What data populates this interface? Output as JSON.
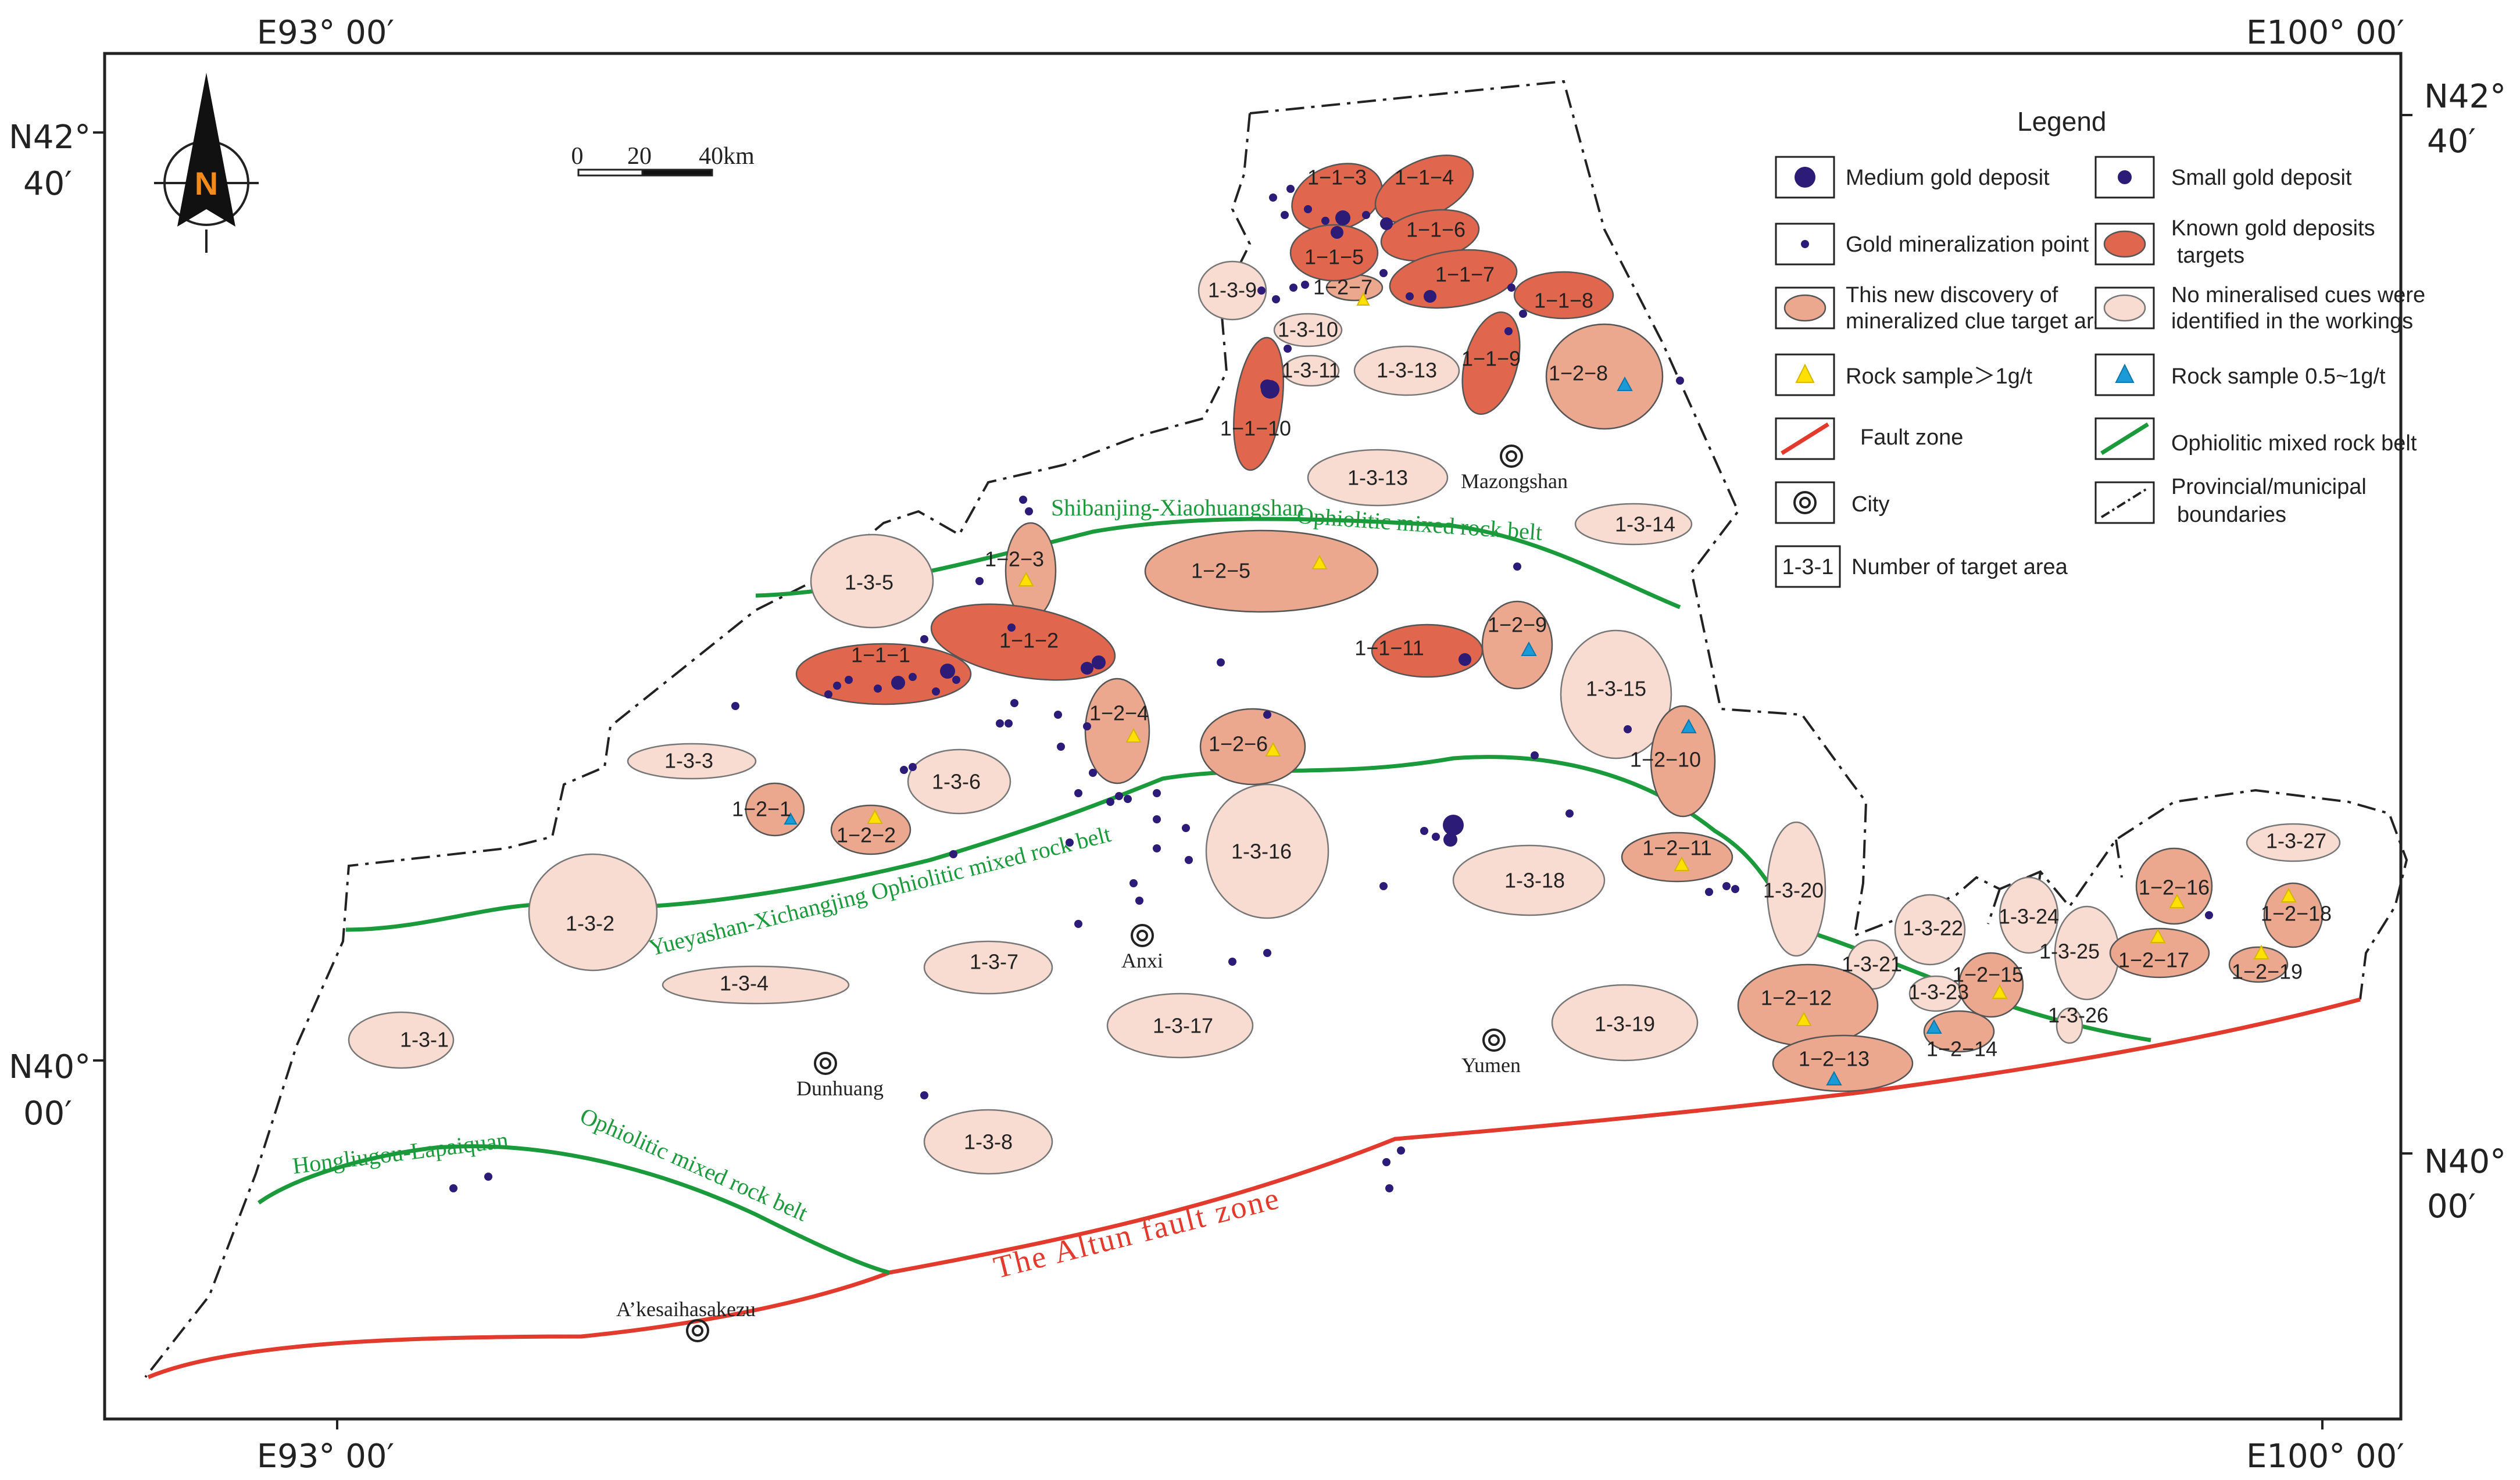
{
  "coords": {
    "top_left": "E93° 00′",
    "top_right": "E100° 00′",
    "bottom_left": "E93° 00′",
    "bottom_right": "E100° 00′",
    "left_upper": [
      "N42°",
      "40′"
    ],
    "left_lower": [
      "N40°",
      "00′"
    ],
    "right_upper": [
      "N42°",
      "40′"
    ],
    "right_lower": [
      "N40°",
      "00′"
    ]
  },
  "north_arrow": {
    "letter": "N"
  },
  "scale_bar": {
    "ticks": [
      "0",
      "20",
      "40km"
    ]
  },
  "legend": {
    "title": "Legend",
    "items": {
      "medium_gold": "Medium gold deposit",
      "small_gold": "Small gold deposit",
      "mineralization_point": "Gold mineralization point",
      "known_targets": [
        "Known gold deposits",
        "targets"
      ],
      "new_discovery": [
        "This new discovery of",
        "mineralized clue target area"
      ],
      "no_mineralised": [
        "No mineralised cues were",
        "identified in the workings"
      ],
      "rock_high": "Rock sample＞1g/t",
      "rock_mid": "Rock sample 0.5~1g/t",
      "fault": "Fault zone",
      "ophiolitic": "Ophiolitic mixed rock belt",
      "city": "City",
      "boundaries": [
        "Provincial/municipal",
        "boundaries"
      ],
      "target_number": "Number of target area",
      "target_number_sample": "1-3-1"
    }
  },
  "colors": {
    "known": "#e0664e",
    "new_discovery": "#eca78f",
    "no_mineralised": "#f8dcd1",
    "deposit": "#2d1b78",
    "rock_high": "#ffe000",
    "rock_mid": "#1a9ad6",
    "fault": "#e23a2c",
    "belt": "#1a9a3a"
  },
  "cities": {
    "mazongshan": "Mazongshan",
    "anxi": "Anxi",
    "dunhuang": "Dunhuang",
    "yumen": "Yumen",
    "akesai": "A’kesaihasakezu"
  },
  "belts": {
    "shibanjing_a": "Shibanjing-Xiaohuangshan",
    "shibanjing_b": "Ophiolitic mixed rock belt",
    "yueyashan": "Yueyashan-Xichangjing  Ophiolitic mixed rock belt",
    "hongliugou_a": "Hongliugou-Lapaiquan",
    "hongliugou_b": "Ophiolitic mixed rock belt"
  },
  "fault_label": "The Altun fault zone",
  "targets": {
    "t111": "1−1−1",
    "t112": "1−1−2",
    "t113": "1−1−3",
    "t114": "1−1−4",
    "t115": "1−1−5",
    "t116": "1−1−6",
    "t117": "1−1−7",
    "t118": "1−1−8",
    "t119": "1−1−9",
    "t1110": "1−1−10",
    "t1111": "1−1−11",
    "t121": "1−2−1",
    "t122": "1−2−2",
    "t123": "1−2−3",
    "t124": "1−2−4",
    "t125": "1−2−5",
    "t126": "1−2−6",
    "t127": "1−2−7",
    "t128": "1−2−8",
    "t129": "1−2−9",
    "t1210": "1−2−10",
    "t1211": "1−2−11",
    "t1212": "1−2−12",
    "t1213": "1−2−13",
    "t1214": "1−2−14",
    "t1215": "1−2−15",
    "t1216": "1−2−16",
    "t1217": "1−2−17",
    "t1218": "1−2−18",
    "t1219": "1−2−19",
    "t131": "1-3-1",
    "t132": "1-3-2",
    "t133": "1-3-3",
    "t134": "1-3-4",
    "t135": "1-3-5",
    "t136": "1-3-6",
    "t137": "1-3-7",
    "t138": "1-3-8",
    "t139": "1-3-9",
    "t1310": "1-3-10",
    "t1311": "1-3-11",
    "t1313a": "1-3-13",
    "t1313b": "1-3-13",
    "t1314": "1-3-14",
    "t1315": "1-3-15",
    "t1316": "1-3-16",
    "t1317": "1-3-17",
    "t1318": "1-3-18",
    "t1319": "1-3-19",
    "t1320": "1-3-20",
    "t1321": "1-3-21",
    "t1322": "1-3-22",
    "t1323": "1-3-23",
    "t1324": "1-3-24",
    "t1325": "1-3-25",
    "t1326": "1-3-26",
    "t1327": "1-3-27"
  }
}
